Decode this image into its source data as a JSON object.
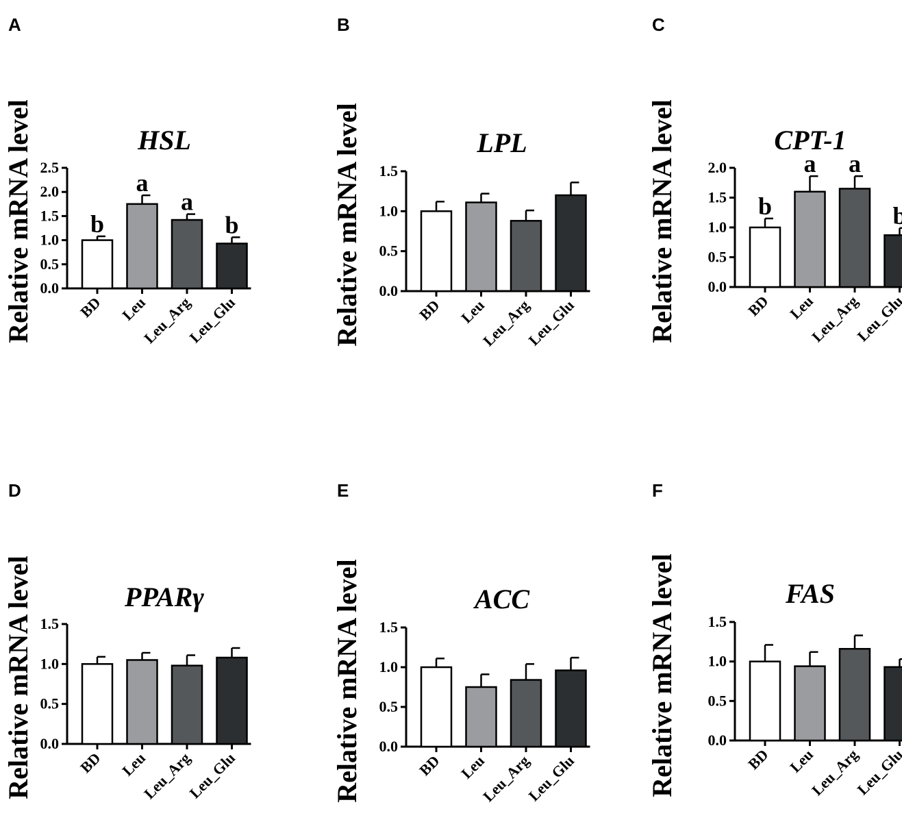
{
  "figure": {
    "categories": [
      "BD",
      "Leu",
      "Leu_Arg",
      "Leu_Glu"
    ],
    "bar_colors": [
      "#ffffff",
      "#9a9ca0",
      "#55585b",
      "#2c2f31"
    ],
    "edge_color": "#000000"
  },
  "chart_data": [
    {
      "panel": "A",
      "type": "bar",
      "title": "HSL",
      "ylabel": "Relative mRNA  level",
      "categories": [
        "BD",
        "Leu",
        "Leu_Arg",
        "Leu_Glu"
      ],
      "values": [
        1.0,
        1.75,
        1.42,
        0.93
      ],
      "errors": [
        0.08,
        0.18,
        0.12,
        0.13
      ],
      "significance": [
        "b",
        "a",
        "a",
        "b"
      ],
      "ylim": [
        0,
        2.5
      ],
      "yticks": [
        "0.0",
        "0.5",
        "1.0",
        "1.5",
        "2.0",
        "2.5"
      ]
    },
    {
      "panel": "B",
      "type": "bar",
      "title": "LPL",
      "ylabel": "Relative mRNA  level",
      "categories": [
        "BD",
        "Leu",
        "Leu_Arg",
        "Leu_Glu"
      ],
      "values": [
        1.0,
        1.11,
        0.88,
        1.2
      ],
      "errors": [
        0.12,
        0.11,
        0.13,
        0.16
      ],
      "significance": [
        "",
        "",
        "",
        ""
      ],
      "ylim": [
        0,
        1.5
      ],
      "yticks": [
        "0.0",
        "0.5",
        "1.0",
        "1.5"
      ]
    },
    {
      "panel": "C",
      "type": "bar",
      "title": "CPT-1",
      "ylabel": "Relative mRNA  level",
      "categories": [
        "BD",
        "Leu",
        "Leu_Arg",
        "Leu_Glu"
      ],
      "values": [
        1.0,
        1.6,
        1.65,
        0.87
      ],
      "errors": [
        0.15,
        0.26,
        0.21,
        0.12
      ],
      "significance": [
        "b",
        "a",
        "a",
        "b"
      ],
      "ylim": [
        0,
        2.0
      ],
      "yticks": [
        "0.0",
        "0.5",
        "1.0",
        "1.5",
        "2.0"
      ]
    },
    {
      "panel": "D",
      "type": "bar",
      "title": "PPARγ",
      "ylabel": "Relative mRNA  level",
      "categories": [
        "BD",
        "Leu",
        "Leu_Arg",
        "Leu_Glu"
      ],
      "values": [
        1.0,
        1.05,
        0.98,
        1.08
      ],
      "errors": [
        0.09,
        0.09,
        0.13,
        0.12
      ],
      "significance": [
        "",
        "",
        "",
        ""
      ],
      "ylim": [
        0,
        1.5
      ],
      "yticks": [
        "0.0",
        "0.5",
        "1.0",
        "1.5"
      ]
    },
    {
      "panel": "E",
      "type": "bar",
      "title": "ACC",
      "ylabel": "Relative mRNA  level",
      "categories": [
        "BD",
        "Leu",
        "Leu_Arg",
        "Leu_Glu"
      ],
      "values": [
        1.0,
        0.75,
        0.84,
        0.96
      ],
      "errors": [
        0.11,
        0.16,
        0.2,
        0.16
      ],
      "significance": [
        "",
        "",
        "",
        ""
      ],
      "ylim": [
        0,
        1.5
      ],
      "yticks": [
        "0.0",
        "0.5",
        "1.0",
        "1.5"
      ]
    },
    {
      "panel": "F",
      "type": "bar",
      "title": "FAS",
      "ylabel": "Relative mRNA level",
      "categories": [
        "BD",
        "Leu",
        "Leu_Arg",
        "Leu_Glu"
      ],
      "values": [
        1.0,
        0.94,
        1.16,
        0.93
      ],
      "errors": [
        0.21,
        0.18,
        0.17,
        0.1
      ],
      "significance": [
        "",
        "",
        "",
        ""
      ],
      "ylim": [
        0,
        1.5
      ],
      "yticks": [
        "0.0",
        "0.5",
        "1.0",
        "1.5"
      ]
    }
  ]
}
